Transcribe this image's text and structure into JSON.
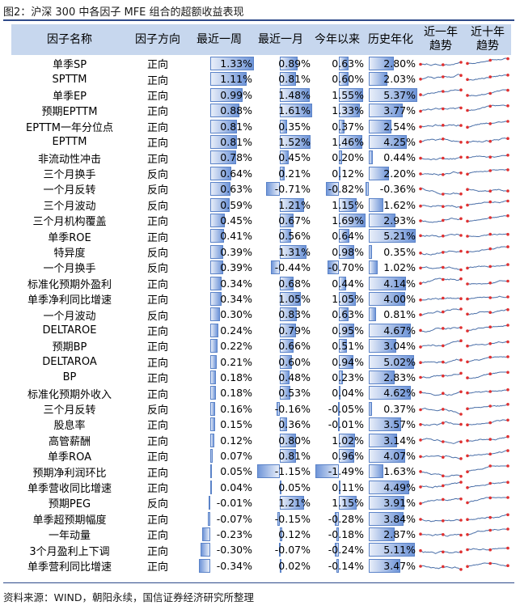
{
  "title": "图2：沪深 300 中各因子 MFE 组合的超额收益表现",
  "source": "资料来源：WIND，朝阳永续，国信证券经济研究所整理",
  "colors": {
    "header_bg": "#c7d7ee",
    "bar": "#6f95d8",
    "bar_border": "#5b83c8",
    "spark_line": "#4a6fa8",
    "spark_point": "#e03030",
    "rule": "#2e4a8a"
  },
  "chart_data": {
    "type": "table",
    "columns": [
      "因子名称",
      "因子方向",
      "最近一周",
      "最近一月",
      "今年以来",
      "历史年化",
      "近一年\n趋势",
      "近十年\n趋势"
    ],
    "ranges": {
      "week": [
        -0.34,
        1.33
      ],
      "month": [
        -1.15,
        1.61
      ],
      "ytd": [
        -1.49,
        1.69
      ],
      "annual": [
        -0.36,
        5.37
      ]
    },
    "rows": [
      {
        "name": "单季SP",
        "dir": "正向",
        "week": "1.33%",
        "month": "0.89%",
        "ytd": "0.63%",
        "annual": "2.80%"
      },
      {
        "name": "SPTTM",
        "dir": "正向",
        "week": "1.11%",
        "month": "0.81%",
        "ytd": "0.60%",
        "annual": "2.03%"
      },
      {
        "name": "单季EP",
        "dir": "正向",
        "week": "0.99%",
        "month": "1.48%",
        "ytd": "1.55%",
        "annual": "5.37%"
      },
      {
        "name": "预期EPTTM",
        "dir": "正向",
        "week": "0.88%",
        "month": "1.61%",
        "ytd": "1.33%",
        "annual": "3.77%"
      },
      {
        "name": "EPTTM一年分位点",
        "dir": "正向",
        "week": "0.81%",
        "month": "0.35%",
        "ytd": "0.37%",
        "annual": "2.54%"
      },
      {
        "name": "EPTTM",
        "dir": "正向",
        "week": "0.81%",
        "month": "1.52%",
        "ytd": "1.46%",
        "annual": "4.25%"
      },
      {
        "name": "非流动性冲击",
        "dir": "正向",
        "week": "0.78%",
        "month": "0.45%",
        "ytd": "0.20%",
        "annual": "0.44%"
      },
      {
        "name": "三个月换手",
        "dir": "反向",
        "week": "0.64%",
        "month": "0.21%",
        "ytd": "0.12%",
        "annual": "2.20%"
      },
      {
        "name": "一个月反转",
        "dir": "反向",
        "week": "0.63%",
        "month": "-0.71%",
        "ytd": "-0.82%",
        "annual": "-0.36%"
      },
      {
        "name": "三个月波动",
        "dir": "反向",
        "week": "0.59%",
        "month": "1.21%",
        "ytd": "1.15%",
        "annual": "1.62%"
      },
      {
        "name": "三个月机构覆盖",
        "dir": "正向",
        "week": "0.45%",
        "month": "0.67%",
        "ytd": "1.69%",
        "annual": "2.93%"
      },
      {
        "name": "单季ROE",
        "dir": "正向",
        "week": "0.41%",
        "month": "0.56%",
        "ytd": "0.64%",
        "annual": "5.21%"
      },
      {
        "name": "特异度",
        "dir": "反向",
        "week": "0.39%",
        "month": "1.31%",
        "ytd": "0.98%",
        "annual": "0.35%"
      },
      {
        "name": "一个月换手",
        "dir": "反向",
        "week": "0.39%",
        "month": "-0.44%",
        "ytd": "-0.70%",
        "annual": "1.02%"
      },
      {
        "name": "标准化预期外盈利",
        "dir": "正向",
        "week": "0.34%",
        "month": "0.68%",
        "ytd": "0.44%",
        "annual": "4.14%"
      },
      {
        "name": "单季净利同比增速",
        "dir": "正向",
        "week": "0.34%",
        "month": "1.05%",
        "ytd": "1.05%",
        "annual": "4.00%"
      },
      {
        "name": "一个月波动",
        "dir": "反向",
        "week": "0.30%",
        "month": "0.83%",
        "ytd": "0.63%",
        "annual": "0.81%"
      },
      {
        "name": "DELTAROE",
        "dir": "正向",
        "week": "0.24%",
        "month": "0.79%",
        "ytd": "0.95%",
        "annual": "4.67%"
      },
      {
        "name": "预期BP",
        "dir": "正向",
        "week": "0.22%",
        "month": "0.66%",
        "ytd": "0.51%",
        "annual": "3.04%"
      },
      {
        "name": "DELTAROA",
        "dir": "正向",
        "week": "0.21%",
        "month": "0.60%",
        "ytd": "0.94%",
        "annual": "5.02%"
      },
      {
        "name": "BP",
        "dir": "正向",
        "week": "0.18%",
        "month": "0.48%",
        "ytd": "0.23%",
        "annual": "2.83%"
      },
      {
        "name": "标准化预期外收入",
        "dir": "正向",
        "week": "0.18%",
        "month": "0.53%",
        "ytd": "0.04%",
        "annual": "4.62%"
      },
      {
        "name": "三个月反转",
        "dir": "反向",
        "week": "0.16%",
        "month": "-0.16%",
        "ytd": "-0.05%",
        "annual": "0.37%"
      },
      {
        "name": "股息率",
        "dir": "正向",
        "week": "0.15%",
        "month": "0.36%",
        "ytd": "-0.01%",
        "annual": "3.57%"
      },
      {
        "name": "高管薪酬",
        "dir": "正向",
        "week": "0.12%",
        "month": "0.80%",
        "ytd": "1.02%",
        "annual": "3.14%"
      },
      {
        "name": "单季ROA",
        "dir": "正向",
        "week": "0.07%",
        "month": "0.81%",
        "ytd": "0.96%",
        "annual": "4.07%"
      },
      {
        "name": "预期净利润环比",
        "dir": "正向",
        "week": "0.05%",
        "month": "-1.15%",
        "ytd": "-1.49%",
        "annual": "1.63%"
      },
      {
        "name": "单季营收同比增速",
        "dir": "正向",
        "week": "0.04%",
        "month": "0.05%",
        "ytd": "0.11%",
        "annual": "4.49%"
      },
      {
        "name": "预期PEG",
        "dir": "反向",
        "week": "-0.01%",
        "month": "1.21%",
        "ytd": "1.15%",
        "annual": "3.91%"
      },
      {
        "name": "单季超预期幅度",
        "dir": "正向",
        "week": "-0.07%",
        "month": "-0.15%",
        "ytd": "-0.28%",
        "annual": "3.84%"
      },
      {
        "name": "一年动量",
        "dir": "正向",
        "week": "-0.23%",
        "month": "0.12%",
        "ytd": "-0.18%",
        "annual": "2.87%"
      },
      {
        "name": "3个月盈利上下调",
        "dir": "正向",
        "week": "-0.30%",
        "month": "-0.07%",
        "ytd": "-0.24%",
        "annual": "5.11%"
      },
      {
        "name": "单季营利同比增速",
        "dir": "正向",
        "week": "-0.34%",
        "month": "0.02%",
        "ytd": "-0.14%",
        "annual": "3.47%"
      }
    ]
  }
}
